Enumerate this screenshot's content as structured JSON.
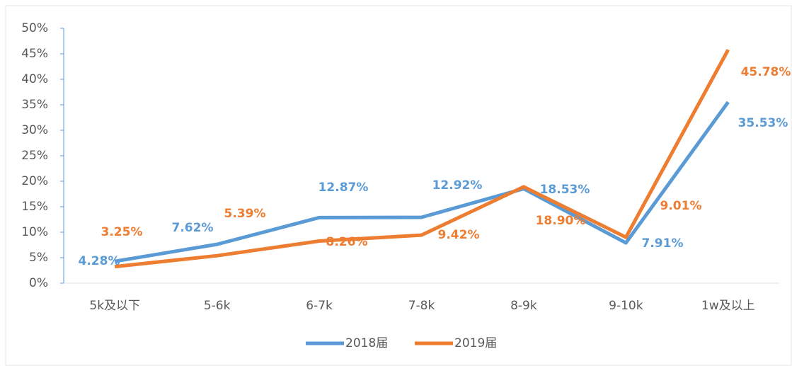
{
  "chart_data": {
    "type": "line",
    "categories": [
      "5k及以下",
      "5-6k",
      "6-7k",
      "7-8k",
      "8-9k",
      "9-10k",
      "1w及以上"
    ],
    "series": [
      {
        "name": "2018届",
        "color": "#5b9bd5",
        "values": [
          4.28,
          7.62,
          12.87,
          12.92,
          18.53,
          7.91,
          35.53
        ],
        "value_labels": [
          "4.28%",
          "7.62%",
          "12.87%",
          "12.92%",
          "18.53%",
          "7.91%",
          "35.53%"
        ]
      },
      {
        "name": "2019届",
        "color": "#ed7d31",
        "values": [
          3.25,
          5.39,
          8.26,
          9.42,
          18.9,
          9.01,
          45.78
        ],
        "value_labels": [
          "3.25%",
          "5.39%",
          "8.26%",
          "9.42%",
          "18.90%",
          "9.01%",
          "45.78%"
        ]
      }
    ],
    "ylim": [
      0,
      50
    ],
    "yticks": [
      {
        "value": 0,
        "label": "0%"
      },
      {
        "value": 5,
        "label": "5%"
      },
      {
        "value": 10,
        "label": "10%"
      },
      {
        "value": 15,
        "label": "15%"
      },
      {
        "value": 20,
        "label": "20%"
      },
      {
        "value": 25,
        "label": "25%"
      },
      {
        "value": 30,
        "label": "30%"
      },
      {
        "value": 35,
        "label": "35%"
      },
      {
        "value": 40,
        "label": "40%"
      },
      {
        "value": 45,
        "label": "45%"
      },
      {
        "value": 50,
        "label": "50%"
      }
    ],
    "legend": "bottom"
  }
}
